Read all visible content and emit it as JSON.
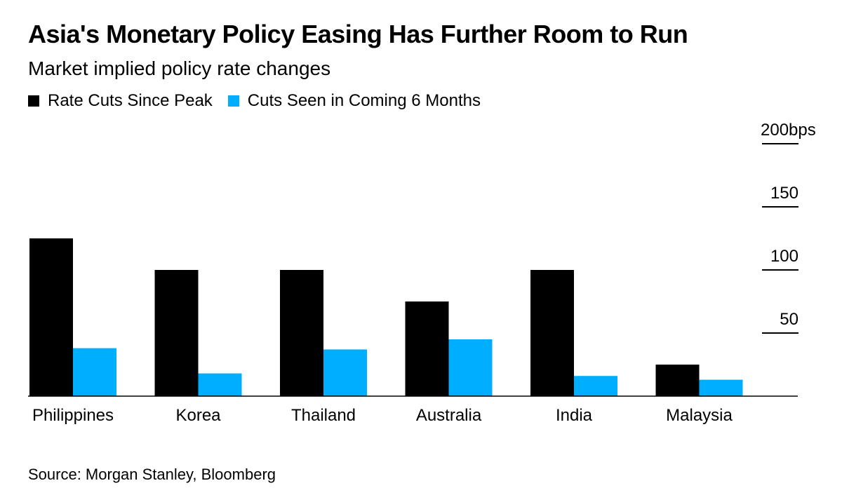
{
  "header": {
    "title": "Asia's Monetary Policy Easing Has Further Room to Run",
    "subtitle": "Market implied policy rate changes"
  },
  "legend": {
    "items": [
      {
        "label": "Rate Cuts Since Peak",
        "color": "#000000"
      },
      {
        "label": "Cuts Seen in Coming 6 Months",
        "color": "#00aeff"
      }
    ]
  },
  "footer": {
    "source": "Source: Morgan Stanley, Bloomberg"
  },
  "chart_data": {
    "type": "bar",
    "title": "Asia's Monetary Policy Easing Has Further Room to Run",
    "subtitle": "Market implied policy rate changes",
    "xlabel": "",
    "ylabel": "",
    "categories": [
      "Philippines",
      "Korea",
      "Thailand",
      "Australia",
      "India",
      "Malaysia"
    ],
    "series": [
      {
        "name": "Rate Cuts Since Peak",
        "color": "#000000",
        "values": [
          125,
          100,
          100,
          75,
          100,
          25
        ]
      },
      {
        "name": "Cuts Seen in Coming 6 Months",
        "color": "#00aeff",
        "values": [
          38,
          18,
          37,
          45,
          16,
          13
        ]
      }
    ],
    "ylim": [
      0,
      200
    ],
    "yticks": [
      {
        "value": 50,
        "label": "50"
      },
      {
        "value": 100,
        "label": "100"
      },
      {
        "value": 150,
        "label": "150"
      },
      {
        "value": 200,
        "label": "200bps"
      }
    ],
    "axis_position": "right",
    "grid": false,
    "legend_position": "top-left"
  }
}
